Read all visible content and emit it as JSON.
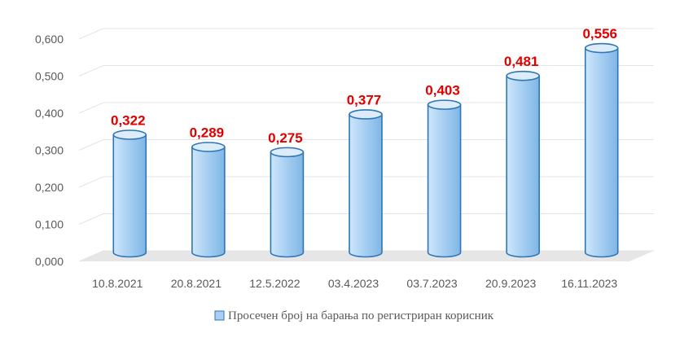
{
  "chart_data": {
    "type": "bar",
    "style": "3d-cylinder",
    "categories": [
      "10.8.2021",
      "20.8.2021",
      "12.5.2022",
      "03.4.2023",
      "03.7.2023",
      "20.9.2023",
      "16.11.2023"
    ],
    "series": [
      {
        "name": "Просечен број на барања по регистриран корисник",
        "values": [
          0.322,
          0.289,
          0.275,
          0.377,
          0.403,
          0.481,
          0.556
        ],
        "labels": [
          "0,322",
          "0,289",
          "0,275",
          "0,377",
          "0,403",
          "0,481",
          "0,556"
        ]
      }
    ],
    "y_ticks": [
      "0,000",
      "0,100",
      "0,200",
      "0,300",
      "0,400",
      "0,500",
      "0,600"
    ],
    "ylim": [
      0,
      0.6
    ],
    "grid": true,
    "legend_position": "bottom",
    "colors": {
      "bar_fill": "#a9d0f2",
      "bar_stroke": "#2e75b6",
      "data_label": "#e00000",
      "axis_text": "#595959",
      "grid": "#e4e4e4",
      "floor": "#e6e6e6"
    }
  }
}
